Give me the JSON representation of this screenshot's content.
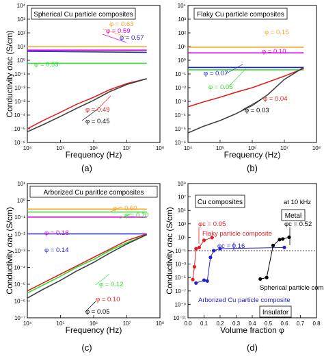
{
  "chart_data": [
    {
      "type": "line",
      "panel_label": "(a)",
      "title": "Spherical Cu particle composites",
      "xlabel": "Frequency (Hz)",
      "ylabel": "Conductivity σac (S/cm)",
      "xscale": "log",
      "yscale": "log",
      "xlim": [
        10000,
        100000000
      ],
      "ylim": [
        1e-06,
        10000
      ],
      "xticks": [
        "10⁴",
        "10⁵",
        "10⁶",
        "10⁷",
        "10⁸"
      ],
      "yticks": [
        "10⁻⁶",
        "10⁻⁵",
        "10⁻⁴",
        "10⁻³",
        "10⁻²",
        "10⁻¹",
        "10⁰",
        "10¹",
        "10²",
        "10³",
        "10⁴"
      ],
      "series": [
        {
          "name": "φ = 0.63",
          "color": "#f5a623",
          "x": [
            10000,
            40000000
          ],
          "y": [
            10,
            10
          ]
        },
        {
          "name": "φ = 0.59",
          "color": "#e000e0",
          "x": [
            10000,
            40000000
          ],
          "y": [
            5.5,
            5.5
          ]
        },
        {
          "name": "φ = 0.57",
          "color": "#2222cc",
          "x": [
            10000,
            40000000
          ],
          "y": [
            4.5,
            3.8
          ]
        },
        {
          "name": "φ = 0.53",
          "color": "#33dd33",
          "x": [
            10000,
            40000000
          ],
          "y": [
            0.6,
            0.6
          ]
        },
        {
          "name": "φ = 0.49",
          "color": "#e02020",
          "x": [
            10000,
            30000,
            100000,
            300000,
            1000000,
            3000000,
            10000000,
            40000000
          ],
          "y": [
            1e-05,
            4e-05,
            0.00016,
            0.0006,
            0.002,
            0.007,
            0.02,
            0.045
          ]
        },
        {
          "name": "φ = 0.45",
          "color": "#404040",
          "x": [
            10000,
            30000,
            100000,
            300000,
            1000000,
            3000000,
            10000000,
            40000000
          ],
          "y": [
            6e-06,
            2e-05,
            8e-05,
            0.0003,
            0.0012,
            0.005,
            0.017,
            0.045
          ]
        }
      ]
    },
    {
      "type": "line",
      "panel_label": "(b)",
      "title": "Flaky Cu particle composites",
      "xlabel": "Frequency (Hz)",
      "ylabel": "",
      "xscale": "log",
      "yscale": "log",
      "xlim": [
        10000,
        100000000
      ],
      "ylim": [
        1e-06,
        10000
      ],
      "xticks": [
        "10⁴",
        "10⁵",
        "10⁶",
        "10⁷",
        "10⁸"
      ],
      "yticks": [
        "10⁻⁶",
        "10⁻⁵",
        "10⁻⁴",
        "10⁻³",
        "10⁻²",
        "10⁻¹",
        "10⁰",
        "10¹",
        "10²",
        "10³",
        "10⁴"
      ],
      "series": [
        {
          "name": "φ = 0.15",
          "color": "#f5a623",
          "x": [
            10000,
            40000000
          ],
          "y": [
            9,
            9
          ]
        },
        {
          "name": "φ = 0.10",
          "color": "#e000e0",
          "x": [
            10000,
            40000000
          ],
          "y": [
            3.5,
            3.5
          ]
        },
        {
          "name": "φ = 0.07",
          "color": "#2222cc",
          "x": [
            10000,
            40000000
          ],
          "y": [
            0.3,
            0.3
          ]
        },
        {
          "name": "φ = 0.05",
          "color": "#33dd33",
          "x": [
            10000,
            40000000
          ],
          "y": [
            0.2,
            0.2
          ]
        },
        {
          "name": "φ = 0.04",
          "color": "#e02020",
          "x": [
            10000,
            30000,
            100000,
            300000,
            1000000,
            3000000,
            10000000,
            40000000
          ],
          "y": [
            0.0004,
            0.0009,
            0.002,
            0.0045,
            0.01,
            0.025,
            0.07,
            0.25
          ]
        },
        {
          "name": "φ = 0.03",
          "color": "#404040",
          "x": [
            10000,
            30000,
            100000,
            300000,
            1000000,
            3000000,
            10000000,
            40000000
          ],
          "y": [
            5e-06,
            1.5e-05,
            4e-05,
            0.00012,
            0.0005,
            0.003,
            0.04,
            0.3
          ]
        }
      ]
    },
    {
      "type": "line",
      "panel_label": "(c)",
      "title": "Arborized Cu paritlce composites",
      "xlabel": "Frequency (Hz)",
      "ylabel": "Conductivity σac (S/cm)",
      "xscale": "log",
      "yscale": "log",
      "xlim": [
        10000,
        100000000
      ],
      "ylim": [
        1e-07,
        10
      ],
      "xticks": [
        "10⁴",
        "10⁵",
        "10⁶",
        "10⁷",
        "10⁸"
      ],
      "yticks": [
        "10⁻⁷",
        "10⁻⁶",
        "10⁻⁵",
        "10⁻⁴",
        "10⁻³",
        "10⁻²",
        "10⁻¹",
        "10⁰",
        "10¹"
      ],
      "series": [
        {
          "name": "φ = 0.60",
          "color": "#f5a623",
          "x": [
            10000,
            40000000
          ],
          "y": [
            0.3,
            0.3
          ]
        },
        {
          "name": "φ = 0.20",
          "color": "#33dd33",
          "x": [
            10000,
            40000000
          ],
          "y": [
            0.2,
            0.2
          ]
        },
        {
          "name": "φ = 0.16",
          "color": "#e000e0",
          "x": [
            10000,
            40000000
          ],
          "y": [
            0.1,
            0.1
          ]
        },
        {
          "name": "φ = 0.14",
          "color": "#2222cc",
          "x": [
            10000,
            40000000
          ],
          "y": [
            0.01,
            0.01
          ]
        },
        {
          "name": "φ = 0.12",
          "color": "#33dd33",
          "x": [
            10000,
            30000,
            100000,
            300000,
            1000000,
            3000000,
            10000000,
            40000000
          ],
          "y": [
            3e-06,
            9e-06,
            3e-05,
            0.0001,
            0.0003,
            0.001,
            0.003,
            0.009
          ]
        },
        {
          "name": "φ = 0.10",
          "color": "#e02020",
          "x": [
            10000,
            30000,
            100000,
            300000,
            1000000,
            3000000,
            10000000,
            40000000
          ],
          "y": [
            4e-06,
            1.2e-05,
            4e-05,
            0.00012,
            0.0004,
            0.0012,
            0.004,
            0.01
          ]
        },
        {
          "name": "φ = 0.05",
          "color": "#404040",
          "x": [
            10000,
            30000,
            100000,
            300000,
            1000000,
            3000000,
            10000000,
            40000000
          ],
          "y": [
            1.5e-06,
            5e-06,
            1.7e-05,
            6e-05,
            0.0002,
            0.0007,
            0.0025,
            0.009
          ]
        }
      ]
    },
    {
      "type": "scatter",
      "panel_label": "(d)",
      "title": "Cu composites",
      "condition": "at 10 kHz",
      "xlabel": "Volume fraction φ",
      "ylabel": "Conductivity σac (S/cm)",
      "xscale": "linear",
      "yscale": "log",
      "xlim": [
        0,
        0.8
      ],
      "ylim": [
        1e-11,
        1000000000.0
      ],
      "xticks": [
        "0.0",
        "0.1",
        "0.2",
        "0.3",
        "0.4",
        "0.5",
        "0.6",
        "0.7",
        "0.8"
      ],
      "yticks": [
        "10⁻¹¹",
        "10⁻⁹",
        "10⁻⁷",
        "10⁻⁵",
        "10⁻³",
        "10⁻¹",
        "10¹",
        "10³",
        "10⁵",
        "10⁷",
        "10⁹"
      ],
      "regions": [
        "Metal",
        "Insulator"
      ],
      "series": [
        {
          "name": "Flaky particle composite",
          "color": "#e02020",
          "x": [
            0.03,
            0.04,
            0.05,
            0.07,
            0.1,
            0.15
          ],
          "y": [
            5e-06,
            0.0004,
            0.2,
            0.3,
            3.5,
            9
          ]
        },
        {
          "name": "Arborized Cu particle composite",
          "color": "#2222cc",
          "x": [
            0.05,
            0.1,
            0.12,
            0.14,
            0.16,
            0.2,
            0.6
          ],
          "y": [
            1.5e-06,
            4e-06,
            3e-06,
            0.01,
            0.1,
            0.2,
            0.3
          ]
        },
        {
          "name": "Spherical particle composite",
          "color": "#000000",
          "x": [
            0.45,
            0.49,
            0.53,
            0.57,
            0.59,
            0.63
          ],
          "y": [
            6e-06,
            1e-05,
            0.6,
            4.5,
            5.5,
            10
          ]
        }
      ],
      "annotations": [
        {
          "text": "φc = 0.05",
          "color": "#e02020"
        },
        {
          "text": "φc = 0.16",
          "color": "#2222cc"
        },
        {
          "text": "φc = 0.52",
          "color": "#000000"
        }
      ]
    }
  ]
}
